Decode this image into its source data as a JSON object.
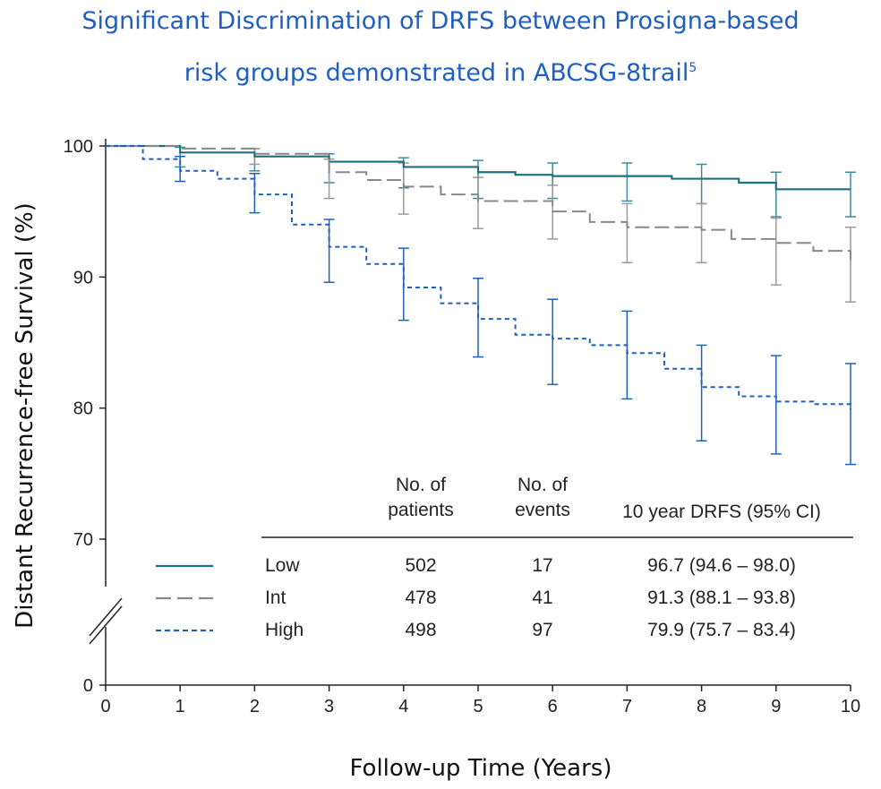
{
  "title_line1": "Significant Discrimination of DRFS between Prosigna-based",
  "title_line2": "risk groups demonstrated in ABCSG-8trail",
  "title_sup": "5",
  "colors": {
    "title": "#1f5fbf",
    "low": "#1e6f7f",
    "int": "#888888",
    "high": "#1f5fbf"
  },
  "chart_data": {
    "type": "line",
    "xlabel": "Follow-up Time (Years)",
    "ylabel": "Distant Recurrence-free Survival (%)",
    "xlim": [
      0,
      10
    ],
    "ylim": [
      70,
      100
    ],
    "axis_break": true,
    "x_ticks": [
      "0",
      "1",
      "2",
      "3",
      "4",
      "5",
      "6",
      "7",
      "8",
      "9",
      "10"
    ],
    "y_ticks": [
      "100",
      "90",
      "80",
      "70",
      "0"
    ],
    "series": [
      {
        "name": "Low",
        "style": "solid",
        "color": "#1e6f7f",
        "points": [
          [
            0,
            100
          ],
          [
            1,
            99.5
          ],
          [
            2,
            99.2
          ],
          [
            3,
            98.8
          ],
          [
            4,
            98.4
          ],
          [
            5,
            98.0
          ],
          [
            5.5,
            97.8
          ],
          [
            6,
            97.7
          ],
          [
            7,
            97.7
          ],
          [
            7.6,
            97.5
          ],
          [
            8.5,
            97.2
          ],
          [
            9,
            96.7
          ],
          [
            10,
            96.7
          ]
        ],
        "error_bars": [
          [
            1,
            98.4,
            99.9
          ],
          [
            2,
            98.1,
            99.8
          ],
          [
            3,
            97.2,
            99.4
          ],
          [
            4,
            96.8,
            99.1
          ],
          [
            5,
            96.0,
            98.9
          ],
          [
            6,
            96.0,
            98.7
          ],
          [
            7,
            95.8,
            98.7
          ],
          [
            8,
            95.6,
            98.6
          ],
          [
            9,
            94.6,
            98.0
          ],
          [
            10,
            94.6,
            98.0
          ]
        ]
      },
      {
        "name": "Int",
        "style": "dashed",
        "color": "#888888",
        "points": [
          [
            0,
            100
          ],
          [
            1,
            99.8
          ],
          [
            2,
            99.4
          ],
          [
            3,
            98.0
          ],
          [
            3.5,
            97.4
          ],
          [
            4,
            96.9
          ],
          [
            4.5,
            96.3
          ],
          [
            5,
            95.8
          ],
          [
            6,
            95.0
          ],
          [
            6.5,
            94.2
          ],
          [
            7,
            93.8
          ],
          [
            8,
            93.6
          ],
          [
            8.4,
            92.9
          ],
          [
            9,
            92.6
          ],
          [
            9.5,
            92.0
          ],
          [
            10,
            91.3
          ]
        ],
        "error_bars": [
          [
            2,
            98.6,
            99.8
          ],
          [
            3,
            96.0,
            99.0
          ],
          [
            4,
            94.8,
            98.7
          ],
          [
            5,
            93.7,
            97.6
          ],
          [
            6,
            92.9,
            97.0
          ],
          [
            7,
            91.1,
            95.6
          ],
          [
            8,
            91.1,
            95.6
          ],
          [
            9,
            89.4,
            94.5
          ],
          [
            10,
            88.1,
            93.8
          ]
        ]
      },
      {
        "name": "High",
        "style": "dotted",
        "color": "#1f5fbf",
        "points": [
          [
            0,
            100
          ],
          [
            0.5,
            99.0
          ],
          [
            1,
            98.1
          ],
          [
            1.5,
            97.5
          ],
          [
            2,
            96.3
          ],
          [
            2.5,
            94.0
          ],
          [
            3,
            92.3
          ],
          [
            3.5,
            91.0
          ],
          [
            4,
            89.2
          ],
          [
            4.5,
            88.0
          ],
          [
            5,
            86.8
          ],
          [
            5.5,
            85.6
          ],
          [
            6,
            85.3
          ],
          [
            6.5,
            84.8
          ],
          [
            7,
            84.2
          ],
          [
            7.5,
            83.0
          ],
          [
            8,
            81.6
          ],
          [
            8.5,
            80.9
          ],
          [
            9,
            80.5
          ],
          [
            9.5,
            80.3
          ],
          [
            10,
            79.9
          ]
        ],
        "error_bars": [
          [
            1,
            97.3,
            99.2
          ],
          [
            2,
            94.9,
            97.9
          ],
          [
            3,
            89.6,
            94.4
          ],
          [
            4,
            86.7,
            92.2
          ],
          [
            5,
            83.9,
            89.9
          ],
          [
            6,
            81.8,
            88.3
          ],
          [
            7,
            80.7,
            87.4
          ],
          [
            8,
            77.5,
            84.8
          ],
          [
            9,
            76.5,
            84.0
          ],
          [
            10,
            75.7,
            83.4
          ]
        ]
      }
    ]
  },
  "table": {
    "headers": [
      "No. of\npatients",
      "No. of\nevents",
      "10 year DRFS (95% CI)"
    ],
    "header_lines": [
      [
        "No. of",
        "patients"
      ],
      [
        "No. of",
        "events"
      ],
      [
        "10 year DRFS (95% CI)"
      ]
    ],
    "rows": [
      {
        "group": "Low",
        "patients": "502",
        "events": "17",
        "drfs": "96.7 (94.6 – 98.0)"
      },
      {
        "group": "Int",
        "patients": "478",
        "events": "41",
        "drfs": "91.3 (88.1 – 93.8)"
      },
      {
        "group": "High",
        "patients": "498",
        "events": "97",
        "drfs": "79.9 (75.7 – 83.4)"
      }
    ]
  }
}
